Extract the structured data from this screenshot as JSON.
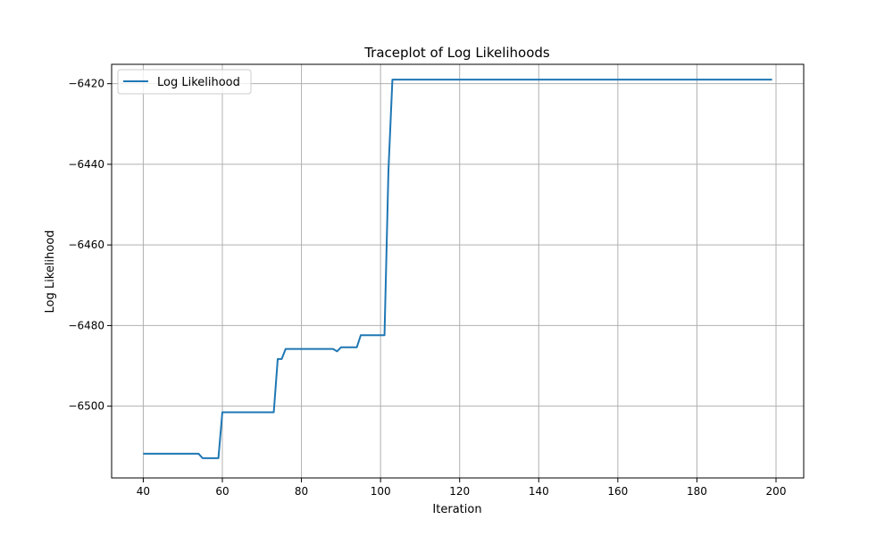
{
  "chart_data": {
    "type": "line",
    "title": "Traceplot of Log Likelihoods",
    "xlabel": "Iteration",
    "ylabel": "Log Likelihood",
    "xlim": [
      32,
      207
    ],
    "ylim": [
      -6517.8,
      -6415.2
    ],
    "xticks": [
      40,
      60,
      80,
      100,
      120,
      140,
      160,
      180,
      200
    ],
    "yticks": [
      -6500,
      -6480,
      -6460,
      -6440,
      -6420
    ],
    "xtick_labels": [
      "40",
      "60",
      "80",
      "100",
      "120",
      "140",
      "160",
      "180",
      "200"
    ],
    "ytick_labels": [
      "−6500",
      "−6480",
      "−6460",
      "−6440",
      "−6420"
    ],
    "grid": true,
    "legend_position": "top-left",
    "series": [
      {
        "name": "Log Likelihood",
        "color": "#1f77b4",
        "x": [
          40,
          54,
          55,
          59,
          60,
          73,
          74,
          75,
          76,
          88,
          89,
          90,
          94,
          95,
          101,
          102,
          103,
          199
        ],
        "y": [
          -6511.8,
          -6511.8,
          -6512.9,
          -6512.9,
          -6501.5,
          -6501.5,
          -6488.3,
          -6488.3,
          -6485.8,
          -6485.8,
          -6486.4,
          -6485.4,
          -6485.4,
          -6482.4,
          -6482.4,
          -6441.5,
          -6419.0,
          -6419.0
        ]
      }
    ]
  }
}
